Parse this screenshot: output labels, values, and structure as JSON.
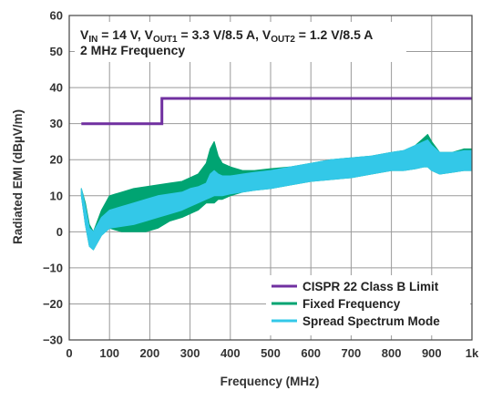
{
  "chart_data": {
    "type": "line",
    "title": "",
    "annotations": [
      "V_IN = 14 V, V_OUT1 = 3.3 V/8.5 A, V_OUT2 = 1.2 V/8.5 A",
      "2 MHz Frequency"
    ],
    "annotation_parts": {
      "vin_v": "V",
      "vin_sub": "IN",
      "vin_val": " = 14 V, ",
      "vout1_v": "V",
      "vout1_sub": "OUT1",
      "vout1_val": " = 3.3 V/8.5 A, ",
      "vout2_v": "V",
      "vout2_sub": "OUT2",
      "vout2_val": " = 1.2 V/8.5 A",
      "line2": "2 MHz Frequency"
    },
    "xlabel": "Frequency (MHz)",
    "ylabel": "Radiated EMI (dBµV/m)",
    "xlim": [
      0,
      1000
    ],
    "ylim": [
      -30,
      60
    ],
    "x_ticks": [
      0,
      100,
      200,
      300,
      400,
      500,
      600,
      700,
      800,
      900,
      1000
    ],
    "x_tick_labels": [
      "0",
      "100",
      "200",
      "300",
      "400",
      "500",
      "600",
      "700",
      "800",
      "900",
      "1k"
    ],
    "y_ticks": [
      -30,
      -20,
      -10,
      0,
      10,
      20,
      30,
      40,
      50,
      60
    ],
    "y_tick_labels": [
      "−30",
      "−20",
      "−10",
      "0",
      "10",
      "20",
      "30",
      "40",
      "50",
      "60"
    ],
    "grid": true,
    "legend_position": "bottom-right",
    "series": [
      {
        "name": "CISPR 22 Class B Limit",
        "color": "#7030a0",
        "style": "step",
        "x": [
          30,
          230,
          230,
          1000
        ],
        "y": [
          30,
          30,
          37,
          37
        ]
      },
      {
        "name": "Fixed Frequency",
        "color": "#00a472",
        "style": "band",
        "x": [
          30,
          40,
          50,
          60,
          70,
          80,
          90,
          100,
          130,
          160,
          190,
          220,
          250,
          280,
          300,
          320,
          340,
          350,
          360,
          370,
          380,
          400,
          430,
          460,
          500,
          550,
          600,
          650,
          700,
          750,
          800,
          830,
          860,
          880,
          890,
          900,
          920,
          950,
          980,
          1000
        ],
        "y_max": [
          12,
          8,
          2,
          0,
          3,
          6,
          8,
          10,
          11,
          12,
          12.5,
          13,
          13.5,
          14,
          15,
          16,
          19,
          23,
          25,
          21,
          19,
          18,
          17,
          17,
          17.5,
          18,
          19,
          20,
          20.5,
          21,
          22,
          22.5,
          24,
          26,
          27,
          25,
          22,
          22,
          23,
          23
        ],
        "y_min": [
          10,
          2,
          -4,
          -5,
          -3,
          -1,
          0,
          1,
          0,
          0,
          0,
          1,
          3,
          4,
          5,
          6,
          8,
          8,
          8,
          9,
          9,
          10,
          11,
          11.5,
          12,
          13,
          14,
          14.5,
          15,
          16,
          17,
          17,
          17.5,
          18,
          18,
          17,
          16,
          16.5,
          17,
          17
        ]
      },
      {
        "name": "Spread Spectrum Mode",
        "color": "#33c8e8",
        "style": "band",
        "x": [
          30,
          40,
          50,
          60,
          70,
          80,
          90,
          100,
          130,
          160,
          190,
          220,
          250,
          280,
          300,
          320,
          340,
          350,
          360,
          370,
          380,
          400,
          430,
          460,
          500,
          550,
          600,
          650,
          700,
          750,
          800,
          830,
          860,
          880,
          890,
          900,
          920,
          950,
          980,
          1000
        ],
        "y_max": [
          12,
          7,
          1,
          0,
          2,
          4,
          5,
          6,
          7,
          8,
          9,
          10,
          10.5,
          11,
          12,
          12.5,
          13.5,
          16,
          17,
          16,
          15.5,
          15.5,
          16,
          16.5,
          17,
          18,
          19,
          20,
          20.5,
          21,
          22,
          22.5,
          24,
          25,
          25.5,
          24,
          22,
          22,
          22.5,
          22.5
        ],
        "y_min": [
          10,
          2,
          -4,
          -5,
          -3,
          -1,
          0,
          1,
          1.5,
          2,
          3,
          4,
          5,
          6,
          7,
          8,
          9,
          9.5,
          10,
          10,
          10,
          10.5,
          11,
          11.5,
          12,
          13,
          14,
          14.5,
          15,
          16,
          17,
          17,
          17.5,
          18,
          18,
          17,
          16,
          16.5,
          17,
          17
        ]
      }
    ]
  }
}
